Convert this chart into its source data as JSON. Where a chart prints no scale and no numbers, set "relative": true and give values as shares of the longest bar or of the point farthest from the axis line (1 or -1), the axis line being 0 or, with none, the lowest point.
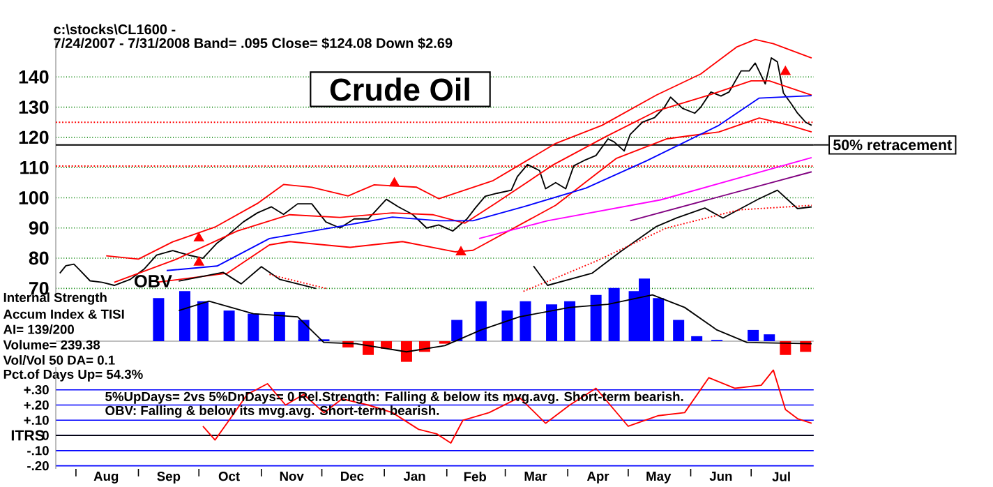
{
  "chart_data": [
    {
      "type": "line",
      "title": "Crude Oil",
      "annotations": [
        "c:\\stocks\\CL1600  -",
        "7/24/2007 - 7/31/2008  Band= .095   Close= $124.08   Down $2.69"
      ],
      "xlim": [
        "2007-07-22",
        "2008-08-01"
      ],
      "ylim": [
        68,
        153
      ],
      "yticks": [
        70,
        80,
        90,
        100,
        110,
        120,
        130,
        140
      ],
      "grid": "y",
      "tick_labels": "y",
      "ref_lines": [
        {
          "axis": "y",
          "value": 117.5,
          "label": "50% retracement",
          "color": "#000000"
        },
        {
          "axis": "y",
          "value": 125,
          "color": "#ff0000",
          "line_style": "dotted"
        },
        {
          "axis": "y",
          "value": 110.5,
          "color": "#ff0000",
          "line_style": "dotted"
        }
      ],
      "series": [
        {
          "color": "#000000",
          "x": [
            "2007-07-24",
            "2007-07-27",
            "2007-07-31",
            "2007-08-03",
            "2007-08-08",
            "2007-08-14",
            "2007-08-20",
            "2007-08-28",
            "2007-09-04",
            "2007-09-10",
            "2007-09-18",
            "2007-09-26",
            "2007-10-03",
            "2007-10-10",
            "2007-10-16",
            "2007-10-23",
            "2007-10-30",
            "2007-11-06",
            "2007-11-12",
            "2007-11-19",
            "2007-11-26",
            "2007-12-03",
            "2007-12-10",
            "2007-12-17",
            "2007-12-24",
            "2008-01-02",
            "2008-01-08",
            "2008-01-15",
            "2008-01-22",
            "2008-01-28",
            "2008-02-04",
            "2008-02-11",
            "2008-02-15",
            "2008-02-20",
            "2008-02-26",
            "2008-03-04",
            "2008-03-07",
            "2008-03-12",
            "2008-03-18",
            "2008-03-21",
            "2008-03-26",
            "2008-03-31",
            "2008-04-04",
            "2008-04-09",
            "2008-04-15",
            "2008-04-21",
            "2008-04-24",
            "2008-04-29",
            "2008-05-02",
            "2008-05-08",
            "2008-05-14",
            "2008-05-19",
            "2008-05-22",
            "2008-05-28",
            "2008-06-03",
            "2008-06-06",
            "2008-06-11",
            "2008-06-16",
            "2008-06-20",
            "2008-06-26",
            "2008-06-30",
            "2008-07-03",
            "2008-07-08",
            "2008-07-11",
            "2008-07-14",
            "2008-07-17",
            "2008-07-21",
            "2008-07-24",
            "2008-07-28",
            "2008-07-31"
          ],
          "values": [
            75,
            77.5,
            78,
            76,
            72.5,
            72,
            71,
            73,
            76.5,
            81,
            82.5,
            81,
            80,
            85,
            88,
            92,
            95,
            97,
            94.5,
            98,
            98,
            92,
            90,
            93,
            93,
            99.5,
            97,
            94.5,
            90,
            91,
            89,
            93,
            96.5,
            100.5,
            101.5,
            102.5,
            107,
            111,
            109,
            103,
            105,
            103,
            110.6,
            112.3,
            114,
            119.5,
            118.5,
            115.5,
            121,
            125,
            126.5,
            130,
            133.3,
            129.6,
            128,
            130,
            135,
            133.7,
            135,
            142,
            142,
            144.6,
            137.7,
            146.3,
            145,
            134.7,
            131,
            128,
            125,
            124
          ]
        },
        {
          "color": "#ff0000",
          "x": [
            "2007-08-16",
            "2007-09-01",
            "2007-09-18",
            "2007-10-09",
            "2007-10-30",
            "2007-11-12",
            "2007-11-26",
            "2007-12-14",
            "2007-12-27",
            "2008-01-17",
            "2008-01-28",
            "2008-02-24",
            "2008-03-26",
            "2008-04-18",
            "2008-05-15",
            "2008-06-06",
            "2008-06-24",
            "2008-07-03",
            "2008-07-12",
            "2008-07-31"
          ],
          "values": [
            80.8,
            79.7,
            85.4,
            90.3,
            98.1,
            104.4,
            103.5,
            100.6,
            104.3,
            103.5,
            99.7,
            105.7,
            118,
            124,
            134,
            141,
            150,
            152.4,
            151,
            146.3
          ]
        },
        {
          "color": "#ff0000",
          "x": [
            "2007-08-20",
            "2007-09-20",
            "2007-10-20",
            "2007-11-15",
            "2007-12-10",
            "2008-01-05",
            "2008-01-25",
            "2008-02-10",
            "2008-02-25",
            "2008-03-25",
            "2008-04-20",
            "2008-05-15",
            "2008-06-10",
            "2008-07-01",
            "2008-07-10",
            "2008-07-31"
          ],
          "values": [
            72,
            79.7,
            89,
            94.4,
            93.5,
            95,
            94.4,
            91.6,
            98.1,
            111,
            120.3,
            128.7,
            134,
            138.7,
            138.7,
            134
          ]
        },
        {
          "color": "#ff0000",
          "x": [
            "2007-09-10",
            "2007-10-15",
            "2007-11-05",
            "2007-11-15",
            "2007-12-15",
            "2008-01-10",
            "2008-02-05",
            "2008-02-14",
            "2008-03-26",
            "2008-04-25",
            "2008-05-20",
            "2008-06-15",
            "2008-07-05",
            "2008-07-20",
            "2008-07-31"
          ],
          "values": [
            72,
            75,
            84.4,
            85.5,
            83.6,
            85.5,
            82.1,
            82.6,
            97.5,
            113,
            119.5,
            121.8,
            126.4,
            124,
            121.8
          ]
        },
        {
          "color": "#0000ff",
          "x": [
            "2007-09-15",
            "2007-10-10",
            "2007-11-05",
            "2007-12-01",
            "2008-01-05",
            "2008-01-28",
            "2008-02-14",
            "2008-03-10",
            "2008-04-10",
            "2008-05-10",
            "2008-06-15",
            "2008-07-05",
            "2008-07-31"
          ],
          "values": [
            75.9,
            77.4,
            86.5,
            89.5,
            93.6,
            92.4,
            92.4,
            97,
            103.2,
            112.2,
            124,
            133,
            133.8
          ]
        },
        {
          "color": "#ff00ff",
          "x": [
            "2008-02-17",
            "2008-03-22",
            "2008-05-17",
            "2008-07-31"
          ],
          "values": [
            86.5,
            92.4,
            99.3,
            113.3
          ]
        },
        {
          "color": "#800080",
          "x": [
            "2008-05-02",
            "2008-07-31"
          ],
          "values": [
            92.4,
            108.6
          ]
        },
        {
          "name": "OBV",
          "color": "#000000",
          "x": [
            "2007-09-21",
            "2007-10-13",
            "2007-10-22",
            "2007-11-01",
            "2007-11-10",
            "2007-11-28",
            "2008-02-15",
            "2008-03-15",
            "2008-03-22",
            "2008-04-13",
            "2008-04-27",
            "2008-05-15",
            "2008-05-25",
            "2008-06-08",
            "2008-06-17",
            "2008-07-05",
            "2008-07-14",
            "2008-07-24",
            "2008-07-31"
          ],
          "values": [
            72.4,
            75.3,
            71.5,
            77.2,
            73,
            70,
            null,
            77.4,
            71,
            75,
            82.1,
            90.5,
            93.3,
            96.6,
            93.3,
            99.7,
            102.5,
            96.4,
            97
          ]
        },
        {
          "color": "#ff0000",
          "line_style": "dotted",
          "x": [
            "2007-11-05",
            "2007-12-03",
            "2008-01-15",
            "2008-03-10",
            "2008-04-15",
            "2008-05-20",
            "2008-06-25",
            "2008-07-31"
          ],
          "values": [
            74.6,
            70,
            null,
            69,
            79,
            90,
            96,
            97.5
          ]
        },
        {
          "type": "scatter",
          "marker": "triangle",
          "color": "#ff0000",
          "x": [
            "2007-10-01",
            "2007-10-01",
            "2008-02-08"
          ],
          "values": [
            86.6,
            78.6,
            82
          ]
        },
        {
          "type": "scatter",
          "marker": "triangle",
          "color": "#ff0000",
          "x": [
            "2008-01-06",
            "2008-07-18"
          ],
          "values": [
            104.8,
            141.7
          ]
        }
      ]
    },
    {
      "type": "bar",
      "relative": true,
      "xlim": [
        "2007-07-22",
        "2008-08-01"
      ],
      "tick_labels": false,
      "annotations": [
        "Internal Strength",
        "Accum Index & TISI",
        "AI= 139/200",
        "Volume= 239.38",
        "Vol/Vol 50 DA= 0.1",
        "Pct.of Days Up= 54.3%"
      ],
      "series": [
        {
          "x": [
            "2007-09-11",
            "2007-09-24",
            "2007-10-03",
            "2007-10-16",
            "2007-10-28",
            "2007-11-10",
            "2007-11-22",
            "2007-12-02",
            "2007-12-14",
            "2007-12-24",
            "2008-01-02",
            "2008-01-12",
            "2008-01-21",
            "2008-01-31",
            "2008-02-06",
            "2008-02-18",
            "2008-03-02",
            "2008-03-11",
            "2008-03-24",
            "2008-04-02",
            "2008-04-15",
            "2008-04-24",
            "2008-05-04",
            "2008-05-09",
            "2008-05-16",
            "2008-05-26",
            "2008-06-04",
            "2008-06-14",
            "2008-07-02",
            "2008-07-10",
            "2008-07-18",
            "2008-07-28"
          ],
          "values": [
            0.69,
            0.8,
            0.64,
            0.49,
            0.44,
            0.47,
            0.34,
            0.03,
            -0.1,
            -0.22,
            -0.12,
            -0.33,
            -0.17,
            -0.04,
            0.34,
            0.64,
            0.49,
            0.64,
            0.59,
            0.64,
            0.74,
            0.85,
            0.8,
            1,
            0.69,
            0.34,
            0.08,
            0.02,
            0.18,
            0.11,
            -0.22,
            -0.17
          ],
          "colors": [
            "#0000ff",
            "#0000ff",
            "#0000ff",
            "#0000ff",
            "#0000ff",
            "#0000ff",
            "#0000ff",
            "#0000ff",
            "#ff0000",
            "#ff0000",
            "#ff0000",
            "#ff0000",
            "#ff0000",
            "#ff0000",
            "#0000ff",
            "#0000ff",
            "#0000ff",
            "#0000ff",
            "#0000ff",
            "#0000ff",
            "#0000ff",
            "#0000ff",
            "#0000ff",
            "#0000ff",
            "#0000ff",
            "#0000ff",
            "#0000ff",
            "#0000ff",
            "#0000ff",
            "#0000ff",
            "#ff0000",
            "#ff0000"
          ]
        },
        {
          "type": "line",
          "color": "#000000",
          "x": [
            "2007-09-21",
            "2007-10-06",
            "2007-10-28",
            "2007-11-19",
            "2007-12-02",
            "2007-12-18",
            "2008-01-12",
            "2008-01-31",
            "2008-02-18",
            "2008-03-08",
            "2008-04-02",
            "2008-04-21",
            "2008-05-13",
            "2008-05-29",
            "2008-06-14",
            "2008-06-29",
            "2008-07-31"
          ],
          "values": [
            0.49,
            0.64,
            0.44,
            0.39,
            -0.02,
            -0.04,
            -0.17,
            -0.07,
            0.18,
            0.39,
            0.54,
            0.59,
            0.74,
            0.54,
            0.18,
            -0.02,
            -0.04
          ]
        }
      ]
    },
    {
      "type": "line",
      "ylabel": "ITRS",
      "xlim": [
        "2007-07-22",
        "2008-08-01"
      ],
      "ylim": [
        -0.22,
        0.45
      ],
      "grid": "y",
      "yticks": [
        {
          "value": 0.3,
          "label": "+.30"
        },
        {
          "value": 0.2,
          "label": "+.20"
        },
        {
          "value": 0.1,
          "label": "+.10"
        },
        0,
        {
          "value": -0.1,
          "label": "-.10"
        },
        {
          "value": -0.2,
          "label": "-.20"
        }
      ],
      "xticks": [
        {
          "value": "2007-08-01",
          "label": null
        },
        {
          "value": "2007-08-16",
          "label": "Aug"
        },
        {
          "value": "2007-09-01",
          "label": null
        },
        {
          "value": "2007-09-16",
          "label": "Sep"
        },
        {
          "value": "2007-10-01",
          "label": null
        },
        {
          "value": "2007-10-16",
          "label": "Oct"
        },
        {
          "value": "2007-11-01",
          "label": null
        },
        {
          "value": "2007-11-16",
          "label": "Nov"
        },
        {
          "value": "2007-12-01",
          "label": null
        },
        {
          "value": "2007-12-16",
          "label": "Dec"
        },
        {
          "value": "2008-01-01",
          "label": null
        },
        {
          "value": "2008-01-16",
          "label": "Jan"
        },
        {
          "value": "2008-02-01",
          "label": null
        },
        {
          "value": "2008-02-15",
          "label": "Feb"
        },
        {
          "value": "2008-03-01",
          "label": null
        },
        {
          "value": "2008-03-16",
          "label": "Mar"
        },
        {
          "value": "2008-04-01",
          "label": null
        },
        {
          "value": "2008-04-16",
          "label": "Apr"
        },
        {
          "value": "2008-05-01",
          "label": null
        },
        {
          "value": "2008-05-16",
          "label": "May"
        },
        {
          "value": "2008-06-01",
          "label": null
        },
        {
          "value": "2008-06-16",
          "label": "Jun"
        },
        {
          "value": "2008-07-01",
          "label": null
        },
        {
          "value": "2008-07-16",
          "label": "Jul"
        }
      ],
      "ref_lines": [
        {
          "axis": "y",
          "value": 0,
          "color": "#000000"
        }
      ],
      "annotations": [
        "5%UpDays= 2vs 5%DnDays= 0   Rel.Strength: Falling & below its mvg.avg. Short-term bearish.",
        "OBV: Falling & below its mvg.avg. Short-term bearish."
      ],
      "series": [
        {
          "color": "#ff0000",
          "x": [
            "2007-10-03",
            "2007-10-09",
            "2007-10-16",
            "2007-10-25",
            "2007-11-04",
            "2007-11-13",
            "2007-11-22",
            "2007-12-02",
            "2007-12-11",
            "2007-12-24",
            "2008-01-05",
            "2008-01-18",
            "2008-01-27",
            "2008-02-03",
            "2008-02-09",
            "2008-02-22",
            "2008-03-08",
            "2008-03-21",
            "2008-04-02",
            "2008-04-15",
            "2008-05-01",
            "2008-05-16",
            "2008-05-29",
            "2008-06-10",
            "2008-06-23",
            "2008-07-06",
            "2008-07-12",
            "2008-07-18",
            "2008-07-24",
            "2008-07-31"
          ],
          "values": [
            0.06,
            -0.03,
            0.1,
            0.27,
            0.34,
            0.2,
            0.27,
            0.15,
            0.24,
            0.2,
            0.15,
            0.04,
            0.01,
            -0.05,
            0.1,
            0.15,
            0.25,
            0.08,
            0.2,
            0.31,
            0.06,
            0.13,
            0.15,
            0.38,
            0.31,
            0.33,
            0.43,
            0.17,
            0.11,
            0.08
          ]
        }
      ]
    }
  ]
}
